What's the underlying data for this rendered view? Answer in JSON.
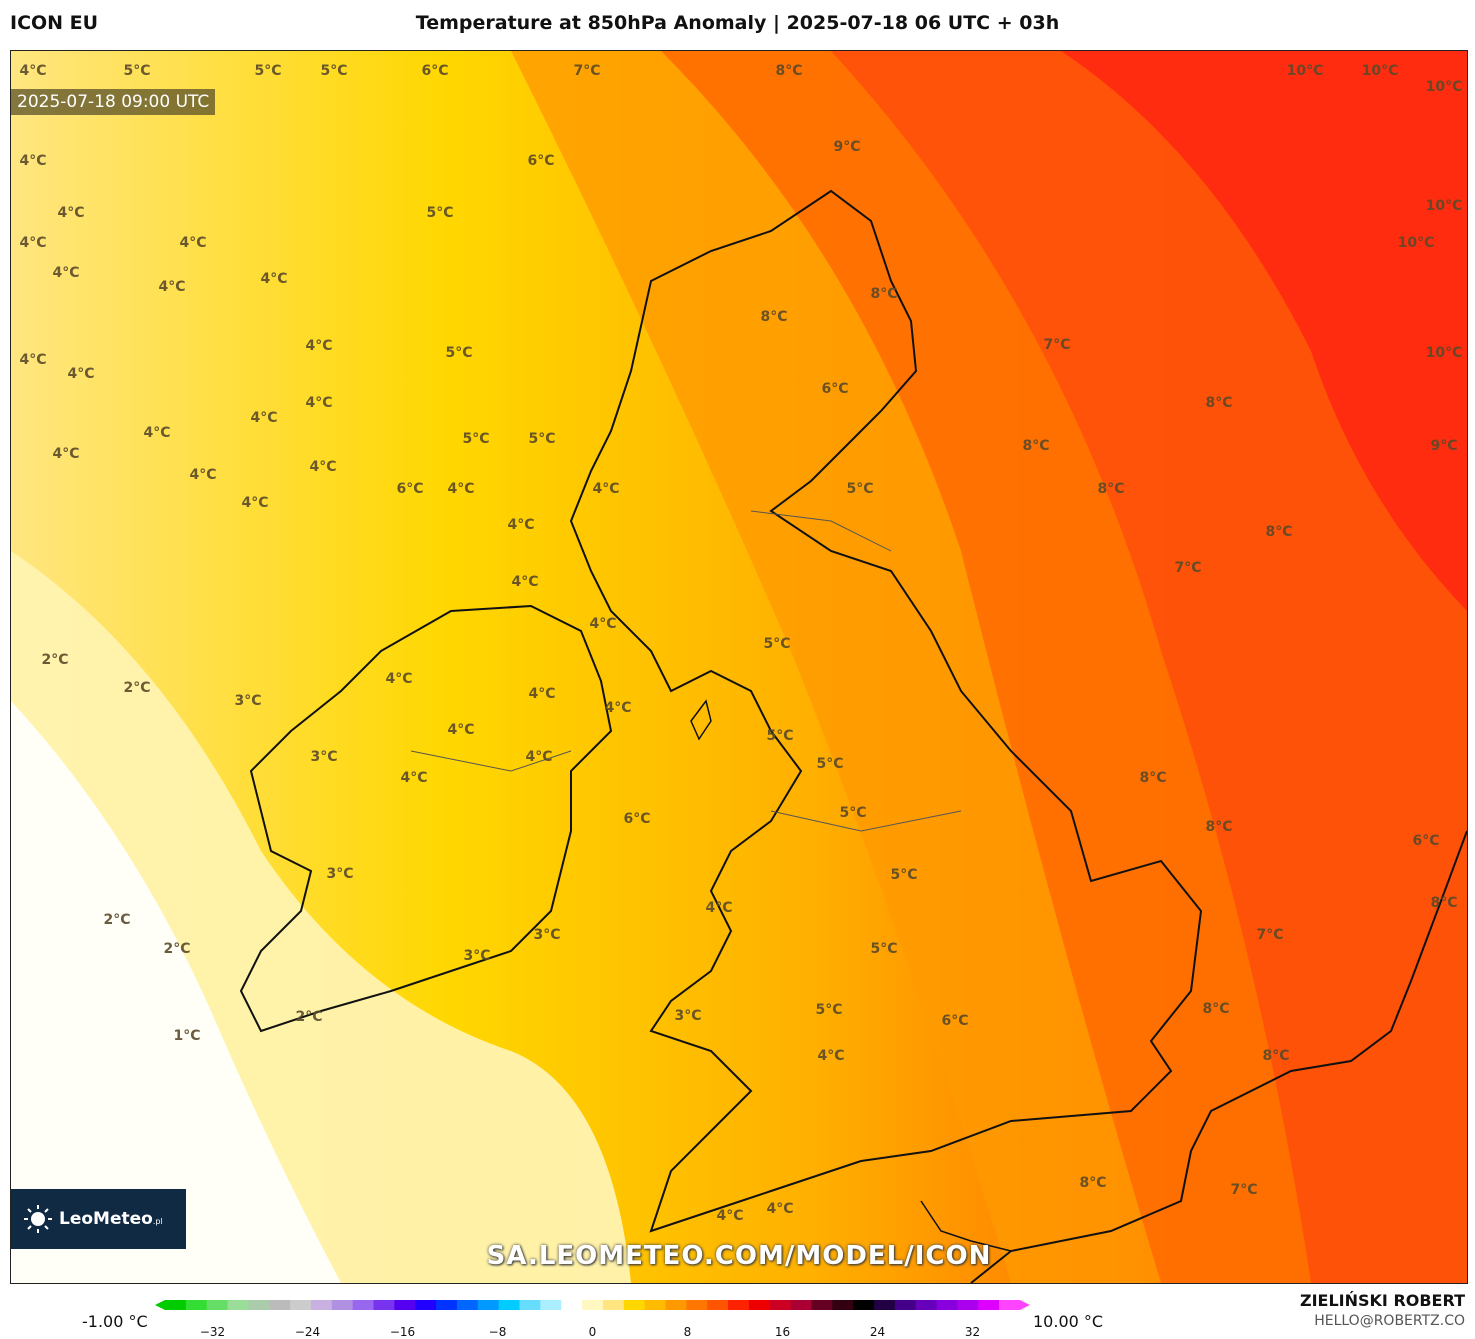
{
  "header": {
    "model": "ICON EU",
    "title": "Temperature at 850hPa Anomaly | 2025-07-18 06 UTC + 03h"
  },
  "map": {
    "valid_time": "2025-07-18 09:00 UTC",
    "watermark": "SA.LEOMETEO.COM/MODEL/ICON",
    "logo_text": "LeoMeteo",
    "logo_suffix": ".pl",
    "labels": [
      {
        "text": "4°C",
        "lon": "w"
      },
      {
        "text": "5°C"
      },
      {
        "text": "5°C"
      },
      {
        "text": "5°C"
      },
      {
        "text": "6°C"
      },
      {
        "text": "7°C"
      },
      {
        "text": "8°C"
      },
      {
        "text": "10°C"
      },
      {
        "text": "10°C"
      },
      {
        "text": "10°C"
      },
      {
        "text": "4°C"
      },
      {
        "text": "6°C"
      },
      {
        "text": "9°C"
      },
      {
        "text": "4°C"
      },
      {
        "text": "5°C"
      },
      {
        "text": "10°C"
      },
      {
        "text": "4°C"
      },
      {
        "text": "4°C"
      },
      {
        "text": "10°C"
      },
      {
        "text": "4°C"
      },
      {
        "text": "4°C"
      },
      {
        "text": "4°C"
      },
      {
        "text": "8°C"
      },
      {
        "text": "4°C"
      },
      {
        "text": "8°C"
      },
      {
        "text": "4°C"
      },
      {
        "text": "4°C"
      },
      {
        "text": "5°C"
      },
      {
        "text": "7°C"
      },
      {
        "text": "10°C"
      },
      {
        "text": "6°C"
      },
      {
        "text": "4°C"
      },
      {
        "text": "8°C"
      },
      {
        "text": "4°C"
      },
      {
        "text": "4°C"
      },
      {
        "text": "5°C"
      },
      {
        "text": "5°C"
      },
      {
        "text": "8°C"
      },
      {
        "text": "9°C"
      },
      {
        "text": "4°C"
      },
      {
        "text": "4°C"
      },
      {
        "text": "4°C"
      },
      {
        "text": "5°C"
      },
      {
        "text": "4°C"
      },
      {
        "text": "4°C"
      },
      {
        "text": "6°C"
      },
      {
        "text": "8°C"
      },
      {
        "text": "4°C"
      },
      {
        "text": "8°C"
      },
      {
        "text": "4°C"
      },
      {
        "text": "7°C"
      },
      {
        "text": "4°C"
      },
      {
        "text": "2°C"
      },
      {
        "text": "5°C"
      },
      {
        "text": "2°C"
      },
      {
        "text": "4°C"
      },
      {
        "text": "3°C"
      },
      {
        "text": "4°C"
      },
      {
        "text": "4°C"
      },
      {
        "text": "4°C"
      },
      {
        "text": "5°C"
      },
      {
        "text": "3°C"
      },
      {
        "text": "4°C"
      },
      {
        "text": "4°C"
      },
      {
        "text": "5°C"
      },
      {
        "text": "8°C"
      },
      {
        "text": "5°C"
      },
      {
        "text": "4°C"
      },
      {
        "text": "8°C"
      },
      {
        "text": "6°C"
      },
      {
        "text": "3°C"
      },
      {
        "text": "5°C"
      },
      {
        "text": "2°C"
      },
      {
        "text": "4°C"
      },
      {
        "text": "6°C"
      },
      {
        "text": "3°C"
      },
      {
        "text": "7°C"
      },
      {
        "text": "2°C"
      },
      {
        "text": "3°C"
      },
      {
        "text": "5°C"
      },
      {
        "text": "2°C"
      },
      {
        "text": "3°C"
      },
      {
        "text": "5°C"
      },
      {
        "text": "8°C"
      },
      {
        "text": "6°C"
      },
      {
        "text": "1°C"
      },
      {
        "text": "4°C"
      },
      {
        "text": "8°C"
      },
      {
        "text": "8°C"
      },
      {
        "text": "7°C"
      },
      {
        "text": "4°C"
      },
      {
        "text": "4°C"
      },
      {
        "text": "8°C"
      }
    ]
  },
  "colorbar": {
    "min_label": "-1.00 °C",
    "max_label": "10.00 °C",
    "ticks": [
      "−32",
      "−24",
      "−16",
      "−8",
      "0",
      "8",
      "16",
      "24",
      "32"
    ],
    "tick_values": [
      -32,
      -24,
      -16,
      -8,
      0,
      8,
      16,
      24,
      32
    ],
    "range": [
      -36,
      36
    ],
    "colors": [
      "#00cc00",
      "#33dd33",
      "#66dd66",
      "#99dd99",
      "#aaccaa",
      "#bbbbbb",
      "#cccccc",
      "#c8b0e0",
      "#b090e0",
      "#9966ee",
      "#7733ee",
      "#5500ee",
      "#2200ff",
      "#0033ff",
      "#0066ff",
      "#0099ff",
      "#00ccff",
      "#66ddff",
      "#aaeeff",
      "#ffffff",
      "#fff8c0",
      "#ffe680",
      "#ffd700",
      "#ffbb00",
      "#ff9900",
      "#ff7700",
      "#ff5500",
      "#ff2200",
      "#ee0000",
      "#cc0022",
      "#aa0033",
      "#660022",
      "#330011",
      "#000000",
      "#220044",
      "#440088",
      "#6600bb",
      "#8800dd",
      "#aa00ee",
      "#dd00ff",
      "#ff44ff"
    ]
  },
  "credits": {
    "author": "ZIELIŃSKI ROBERT",
    "email": "HELLO@ROBERTZ.CO"
  }
}
